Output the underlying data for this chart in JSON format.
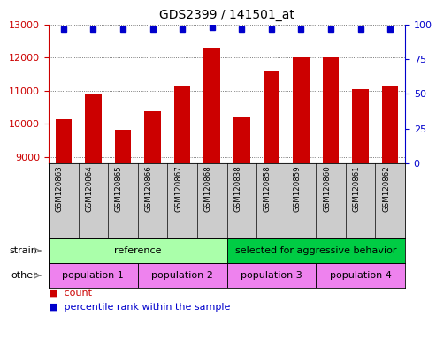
{
  "title": "GDS2399 / 141501_at",
  "samples": [
    "GSM120863",
    "GSM120864",
    "GSM120865",
    "GSM120866",
    "GSM120867",
    "GSM120868",
    "GSM120838",
    "GSM120858",
    "GSM120859",
    "GSM120860",
    "GSM120861",
    "GSM120862"
  ],
  "counts": [
    10150,
    10900,
    9820,
    10380,
    11150,
    12300,
    10200,
    11600,
    12020,
    12000,
    11050,
    11150
  ],
  "percentiles": [
    97,
    97,
    97,
    97,
    97,
    98,
    97,
    97,
    97,
    97,
    97,
    97
  ],
  "ylim_left": [
    8800,
    13000
  ],
  "ylim_right": [
    0,
    100
  ],
  "yticks_left": [
    9000,
    10000,
    11000,
    12000,
    13000
  ],
  "yticks_right": [
    0,
    25,
    50,
    75,
    100
  ],
  "bar_color": "#cc0000",
  "dot_color": "#0000cc",
  "bar_width": 0.55,
  "strain_groups": [
    {
      "text": "reference",
      "span": [
        0,
        6
      ],
      "color": "#aaffaa"
    },
    {
      "text": "selected for aggressive behavior",
      "span": [
        6,
        12
      ],
      "color": "#00cc44"
    }
  ],
  "other_groups": [
    {
      "text": "population 1",
      "span": [
        0,
        3
      ],
      "color": "#ee82ee"
    },
    {
      "text": "population 2",
      "span": [
        3,
        6
      ],
      "color": "#ee82ee"
    },
    {
      "text": "population 3",
      "span": [
        6,
        9
      ],
      "color": "#ee82ee"
    },
    {
      "text": "population 4",
      "span": [
        9,
        12
      ],
      "color": "#ee82ee"
    }
  ],
  "legend_items": [
    {
      "label": "count",
      "color": "#cc0000"
    },
    {
      "label": "percentile rank within the sample",
      "color": "#0000cc"
    }
  ],
  "bg_color": "#ffffff",
  "grid_color": "#555555",
  "tick_color_left": "#cc0000",
  "tick_color_right": "#0000cc",
  "xlbl_bg": "#cccccc",
  "strain_label": "strain",
  "other_label": "other"
}
